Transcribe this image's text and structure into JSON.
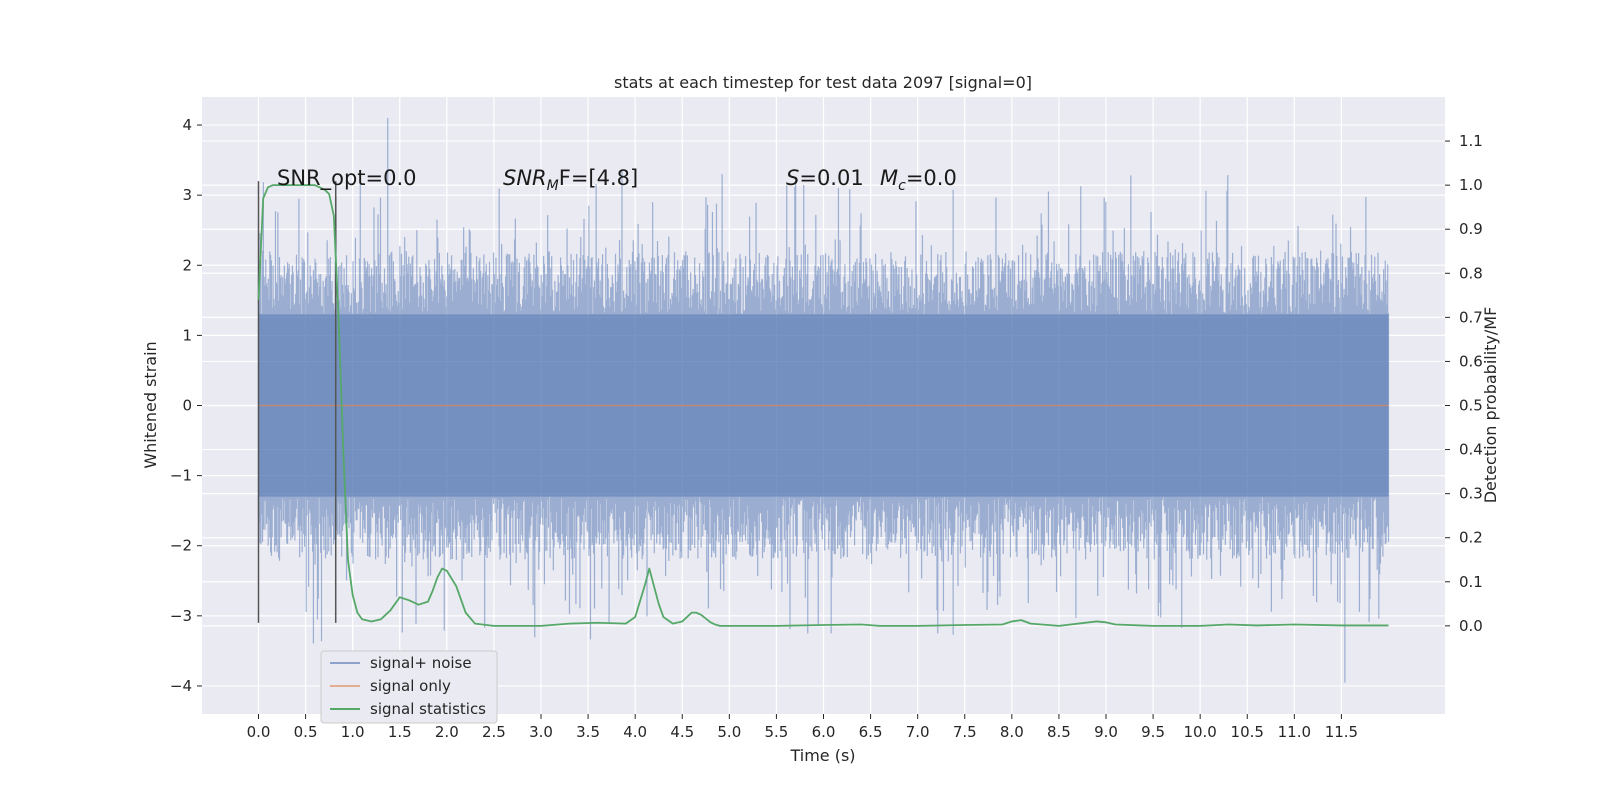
{
  "chart_data": {
    "type": "line",
    "title": "stats at each timestep for test data 2097 [signal=0]",
    "xlabel": "Time (s)",
    "ylabel_left": "Whitened strain",
    "ylabel_right": "Detection probability/MF",
    "xlim": [
      -0.6,
      12.6
    ],
    "ylim_left": [
      -4.4,
      4.4
    ],
    "ylim_right": [
      -0.2,
      1.2
    ],
    "x_ticks": [
      0.0,
      0.5,
      1.0,
      1.5,
      2.0,
      2.5,
      3.0,
      3.5,
      4.0,
      4.5,
      5.0,
      5.5,
      6.0,
      6.5,
      7.0,
      7.5,
      8.0,
      8.5,
      9.0,
      9.5,
      10.0,
      10.5,
      11.0,
      11.5
    ],
    "x_tick_labels": [
      "0.0",
      "0.5",
      "1.0",
      "1.5",
      "2.0",
      "2.5",
      "3.0",
      "3.5",
      "4.0",
      "4.5",
      "5.0",
      "5.5",
      "6.0",
      "6.5",
      "7.0",
      "7.5",
      "8.0",
      "8.5",
      "9.0",
      "9.5",
      "10.0",
      "10.5",
      "11.0",
      "11.5"
    ],
    "y_left_ticks": [
      4,
      3,
      2,
      1,
      0,
      -1,
      -2,
      -3,
      -4
    ],
    "y_left_tick_labels": [
      "4",
      "3",
      "2",
      "1",
      "0",
      "−1",
      "−2",
      "−3",
      "−4"
    ],
    "y_right_ticks": [
      1.1,
      1.0,
      0.9,
      0.8,
      0.7,
      0.6,
      0.5,
      0.4,
      0.3,
      0.2,
      0.1,
      0.0
    ],
    "y_right_tick_labels": [
      "1.1",
      "1.0",
      "0.9",
      "0.8",
      "0.7",
      "0.6",
      "0.5",
      "0.4",
      "0.3",
      "0.2",
      "0.1",
      "0.0"
    ],
    "grid": true,
    "legend_placement": "lower-left",
    "series": [
      {
        "name": "signal+ noise",
        "color": "#4c72b0",
        "axis": "left",
        "x_range": [
          0.0,
          12.0
        ],
        "typical_abs_amplitude": 1.3,
        "extreme_min": -3.95,
        "extreme_max": 4.1
      },
      {
        "name": "signal only",
        "color": "#dd8452",
        "axis": "left",
        "x": [
          0.0,
          12.0
        ],
        "y": [
          0.0,
          0.0
        ]
      },
      {
        "name": "signal statistics",
        "color": "#55a868",
        "axis": "right",
        "x": [
          0.0,
          0.05,
          0.1,
          0.15,
          0.2,
          0.3,
          0.4,
          0.5,
          0.6,
          0.65,
          0.7,
          0.75,
          0.8,
          0.85,
          0.9,
          0.95,
          1.0,
          1.05,
          1.1,
          1.2,
          1.3,
          1.4,
          1.5,
          1.6,
          1.7,
          1.8,
          1.85,
          1.9,
          1.95,
          2.0,
          2.1,
          2.2,
          2.3,
          2.5,
          3.0,
          3.3,
          3.6,
          3.9,
          4.0,
          4.1,
          4.15,
          4.2,
          4.25,
          4.3,
          4.4,
          4.5,
          4.6,
          4.65,
          4.7,
          4.8,
          4.85,
          4.9,
          5.0,
          5.5,
          6.0,
          6.4,
          6.6,
          7.0,
          7.5,
          7.9,
          8.0,
          8.1,
          8.2,
          8.5,
          8.9,
          9.0,
          9.1,
          9.5,
          10.0,
          10.3,
          10.6,
          11.0,
          11.5,
          12.0
        ],
        "y": [
          0.74,
          0.97,
          0.995,
          1.0,
          1.0,
          1.0,
          1.0,
          1.0,
          1.0,
          0.995,
          0.99,
          0.98,
          0.93,
          0.7,
          0.4,
          0.15,
          0.07,
          0.03,
          0.015,
          0.01,
          0.015,
          0.035,
          0.065,
          0.058,
          0.048,
          0.055,
          0.08,
          0.11,
          0.13,
          0.125,
          0.09,
          0.03,
          0.005,
          0.0,
          0.0,
          0.005,
          0.007,
          0.005,
          0.02,
          0.09,
          0.13,
          0.09,
          0.05,
          0.02,
          0.005,
          0.01,
          0.03,
          0.03,
          0.025,
          0.008,
          0.003,
          0.0,
          0.0,
          0.0,
          0.002,
          0.003,
          0.0,
          0.0,
          0.002,
          0.003,
          0.01,
          0.013,
          0.005,
          0.0,
          0.01,
          0.008,
          0.003,
          0.0,
          0.0,
          0.003,
          0.001,
          0.003,
          0.001,
          0.001
        ]
      }
    ],
    "vertical_markers": [
      {
        "x": 0.0,
        "y_range": [
          -3.1,
          3.2
        ]
      },
      {
        "x": 0.82,
        "y_range": [
          -3.1,
          3.2
        ]
      }
    ],
    "annotations": {
      "snr_opt": "SNR_opt=0.0",
      "snr_mf_prefix": "SNR",
      "snr_mf_sub": "M",
      "snr_mf_rest": "F=[4.8]",
      "s_label": "S",
      "s_value": "=0.01",
      "mc_label": "M",
      "mc_sub": "c",
      "mc_value": "=0.0"
    }
  }
}
